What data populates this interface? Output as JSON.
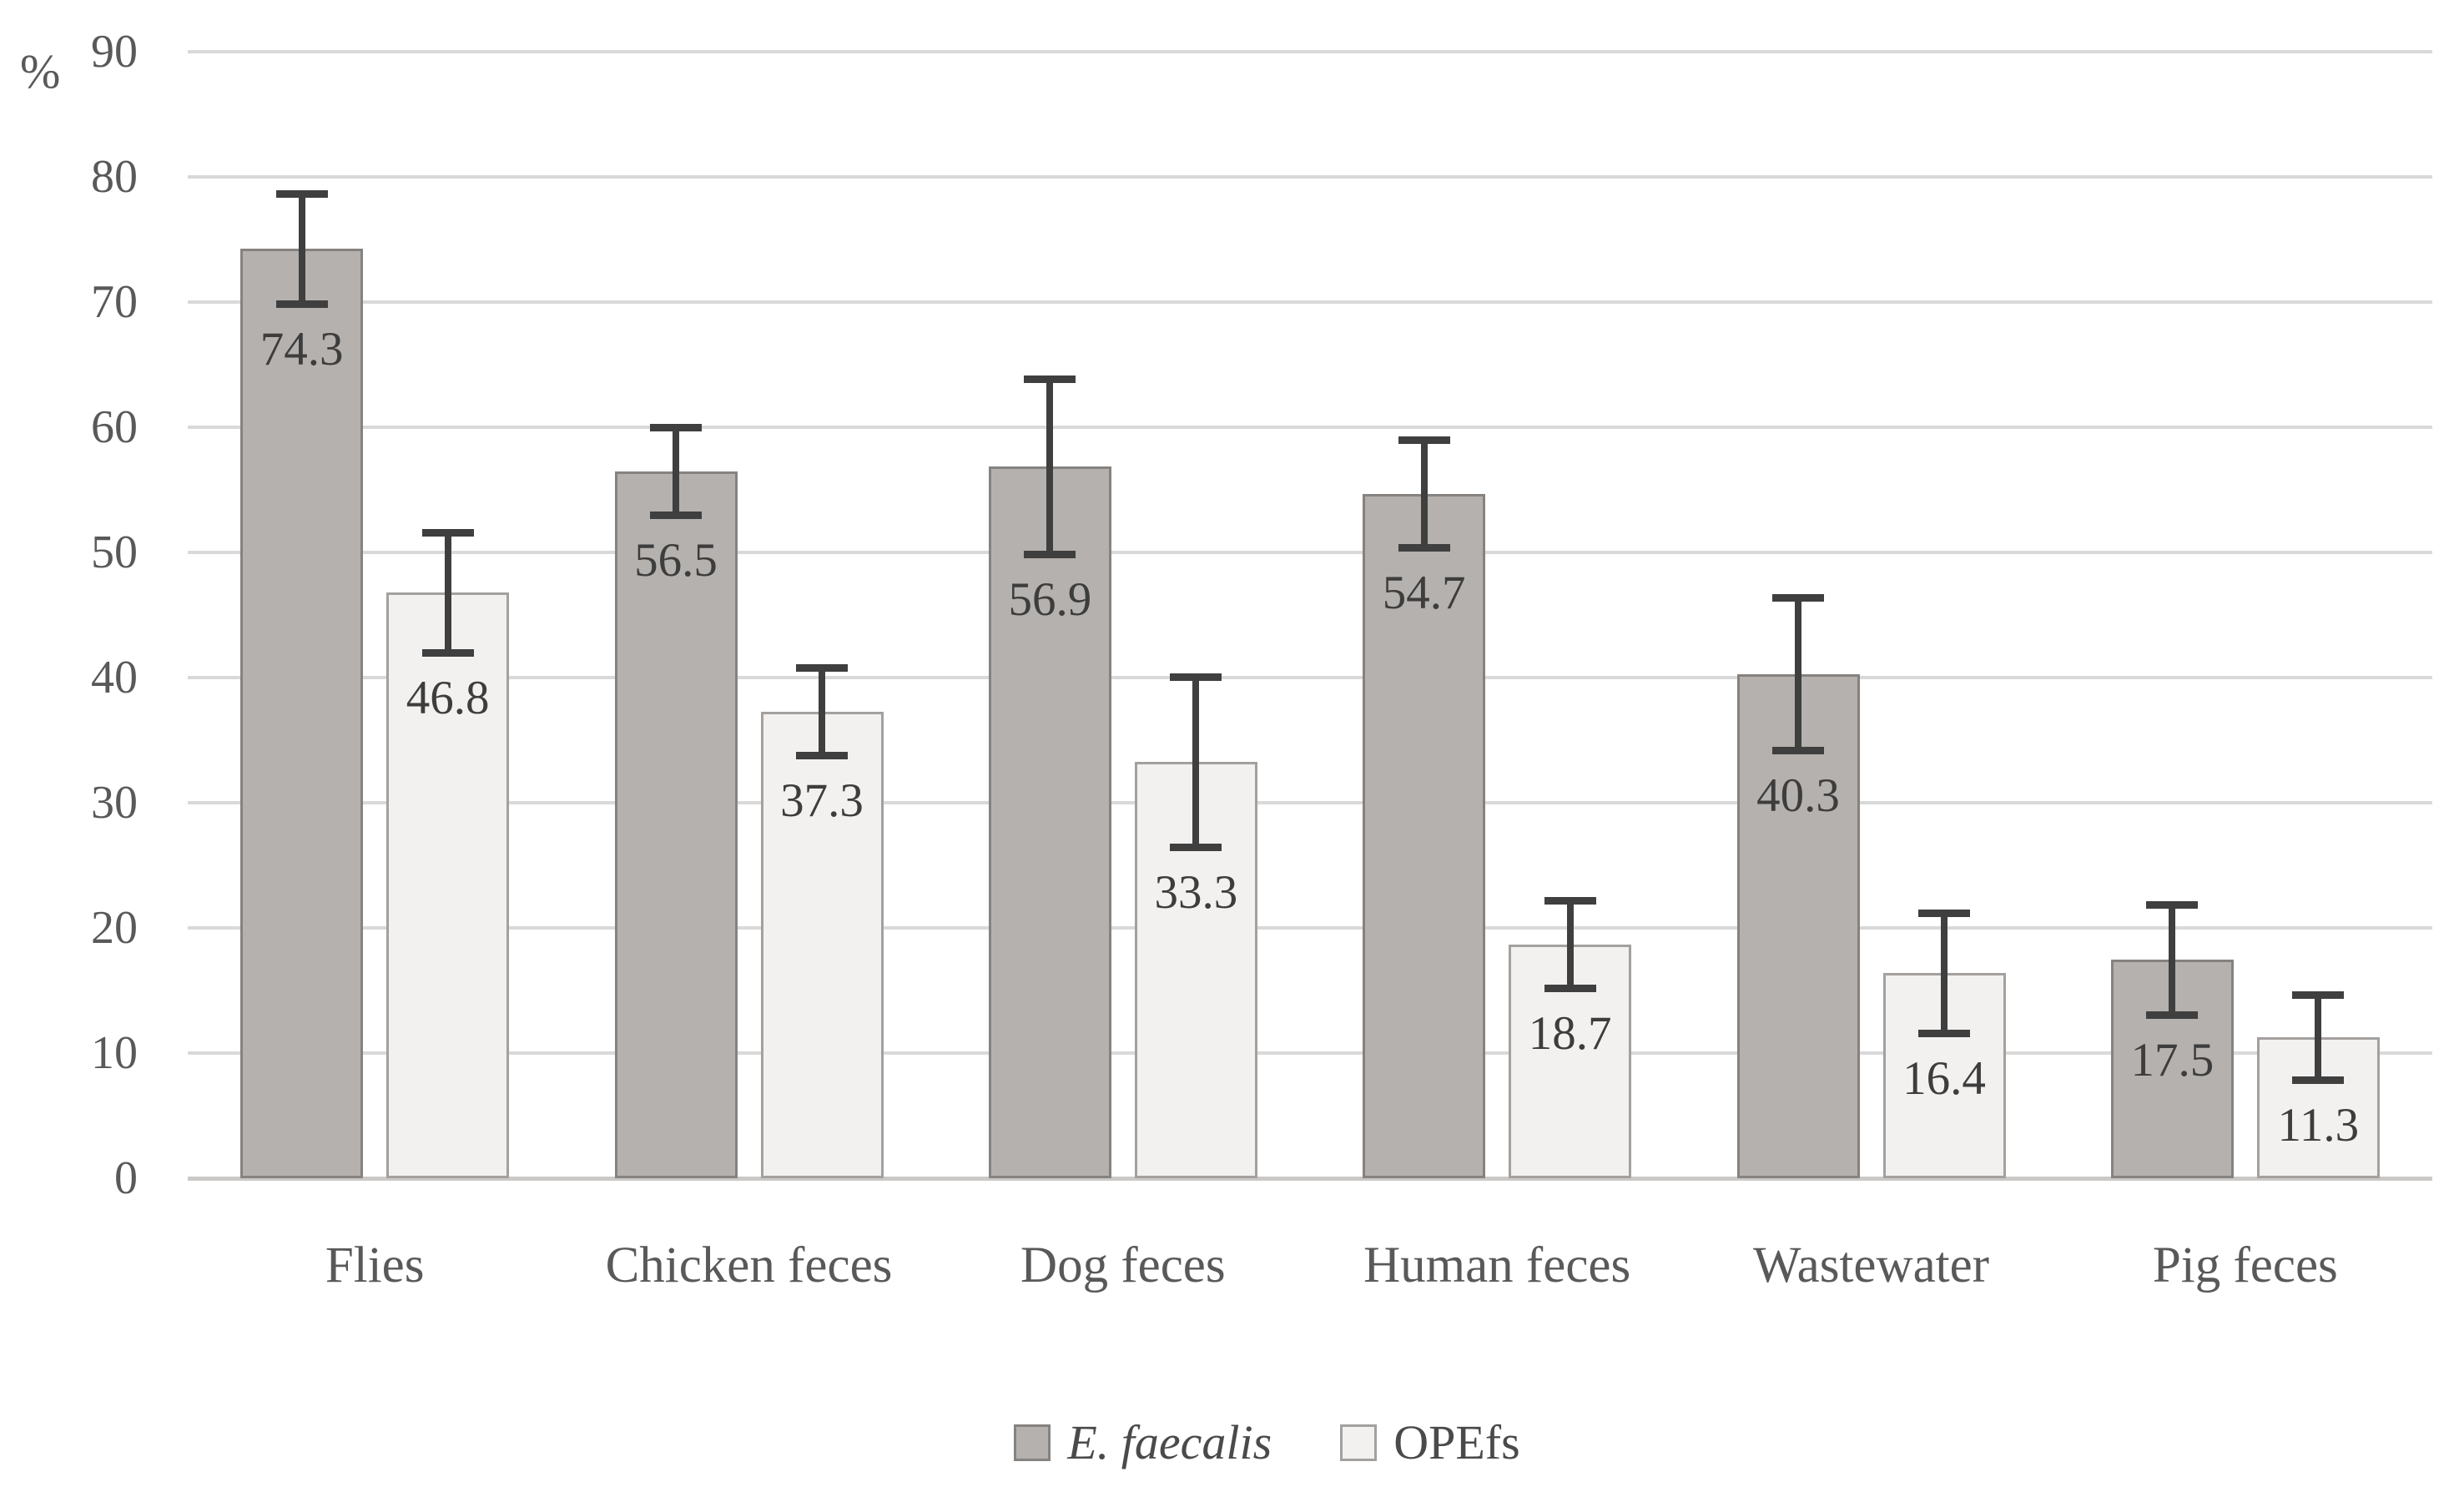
{
  "chart_data": {
    "type": "bar",
    "title": "",
    "ylabel": "%",
    "xlabel": "",
    "ylim": [
      0,
      90
    ],
    "yticks": [
      90,
      80,
      70,
      60,
      50,
      40,
      30,
      20,
      10,
      0
    ],
    "grid": true,
    "legend_position": "bottom",
    "categories": [
      "Flies",
      "Chicken feces",
      "Dog feces",
      "Human feces",
      "Wastewater",
      "Pig feces"
    ],
    "series": [
      {
        "name": "E. faecalis",
        "name_style": "italic",
        "fill": "#b5b1ae",
        "border": "#868280",
        "values": [
          74.3,
          56.5,
          56.9,
          54.7,
          40.3,
          17.5
        ],
        "labels": [
          "74.3",
          "56.5",
          "56.9",
          "54.7",
          "40.3",
          "17.5"
        ],
        "errors": [
          4.4,
          3.5,
          7.0,
          4.3,
          6.1,
          4.4
        ]
      },
      {
        "name": "OPEfs",
        "name_style": "normal",
        "fill": "#f2f1f0",
        "border": "#a3a09e",
        "values": [
          46.8,
          37.3,
          33.3,
          18.7,
          16.4,
          11.3
        ],
        "labels": [
          "46.8",
          "37.3",
          "33.3",
          "18.7",
          "16.4",
          "11.3"
        ],
        "errors": [
          4.8,
          3.5,
          6.8,
          3.5,
          4.8,
          3.4
        ]
      }
    ],
    "colors": {
      "error_bar": "#3f3f3f",
      "gridline": "#d9d9d9",
      "axis_line": "#cbc9c8",
      "tick_text": "#595959",
      "data_label_text": "#3d3d3d",
      "legend_text": "#4a4a4a",
      "background": "#ffffff"
    }
  }
}
